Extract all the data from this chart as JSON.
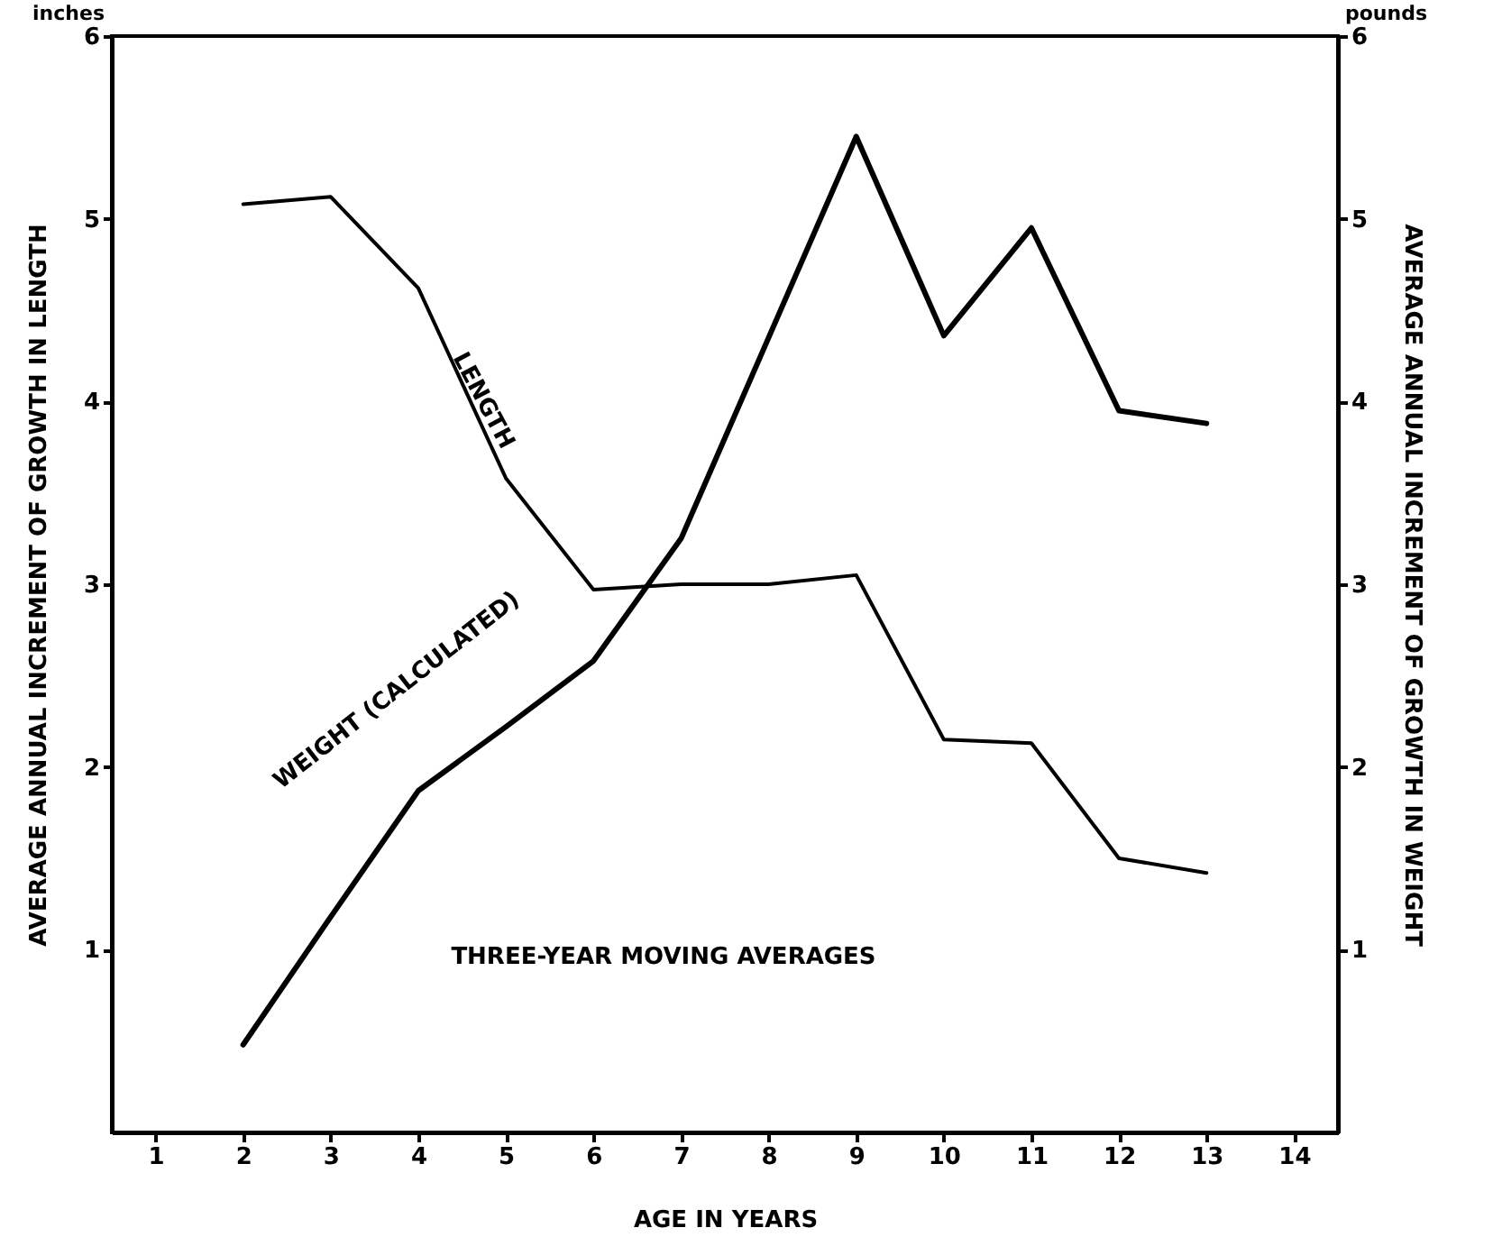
{
  "chart_data": {
    "type": "line",
    "xlabel": "AGE IN YEARS",
    "ylabel": "AVERAGE ANNUAL INCREMENT OF GROWTH IN LENGTH",
    "y2label": "AVERAGE ANNUAL INCREMENT OF GROWTH IN WEIGHT",
    "x": [
      2,
      3,
      4,
      5,
      6,
      7,
      8,
      9,
      10,
      11,
      12,
      13
    ],
    "series": [
      {
        "name": "LENGTH",
        "color": "#000000",
        "values": [
          5.08,
          5.12,
          4.62,
          3.58,
          2.97,
          3.0,
          3.0,
          3.05,
          2.15,
          2.13,
          1.5,
          1.42
        ]
      },
      {
        "name": "WEIGHT (CALCULATED)",
        "color": "#000000",
        "axis": "y2",
        "values": [
          0.48,
          1.18,
          1.87,
          2.22,
          2.58,
          3.25,
          4.35,
          5.45,
          4.36,
          4.95,
          3.95,
          3.88
        ]
      }
    ],
    "xlim": [
      0.5,
      14.5
    ],
    "xticks": [
      1,
      2,
      3,
      4,
      5,
      6,
      7,
      8,
      9,
      10,
      11,
      12,
      13,
      14
    ],
    "ylim": [
      0,
      6
    ],
    "yticks": [
      1,
      2,
      3,
      4,
      5,
      6
    ],
    "y2lim": [
      0,
      6
    ],
    "y2ticks": [
      1,
      2,
      3,
      4,
      5,
      6
    ],
    "grid": false,
    "legend": false,
    "line_style": "solid",
    "annotations": [
      "inches",
      "pounds",
      "THREE-YEAR MOVING AVERAGES"
    ]
  }
}
